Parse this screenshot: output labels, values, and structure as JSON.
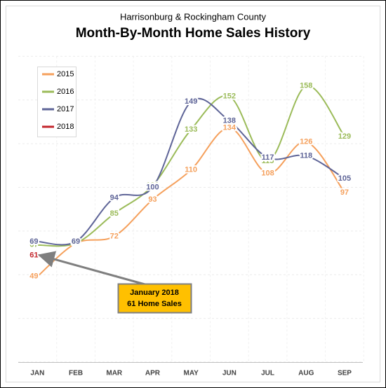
{
  "chart_data": {
    "type": "line",
    "subtitle": "Harrisonburg & Rockingham County",
    "title": "Month-By-Month Home Sales History",
    "categories": [
      "JAN",
      "FEB",
      "MAR",
      "APR",
      "MAY",
      "JUN",
      "JUL",
      "AUG",
      "SEP"
    ],
    "series": [
      {
        "name": "2015",
        "color": "#f5a05c",
        "values": [
          49,
          68,
          72,
          93,
          110,
          134,
          108,
          126,
          97
        ]
      },
      {
        "name": "2016",
        "color": "#9bbb59",
        "values": [
          67,
          68,
          85,
          101,
          133,
          152,
          115,
          158,
          129
        ]
      },
      {
        "name": "2017",
        "color": "#5e6497",
        "values": [
          69,
          69,
          94,
          100,
          149,
          138,
          117,
          118,
          105
        ]
      },
      {
        "name": "2018",
        "color": "#c3262c",
        "values": [
          61,
          null,
          null,
          null,
          null,
          null,
          null,
          null,
          null
        ]
      }
    ],
    "ylim": [
      0,
      175
    ],
    "yticks": [
      0,
      25,
      50,
      75,
      100,
      125,
      150,
      175
    ],
    "grid": true,
    "legend": "upper left",
    "smooth": true,
    "annotation": {
      "lines": [
        "January 2018",
        "61 Home Sales"
      ],
      "target": {
        "series": 3,
        "index": 0
      }
    }
  }
}
